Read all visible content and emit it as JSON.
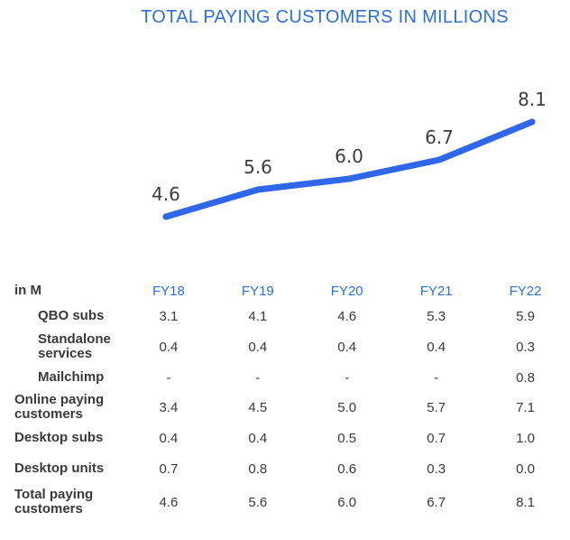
{
  "title": "TOTAL PAYING CUSTOMERS IN MILLIONS",
  "colors": {
    "line": "#2f67e8",
    "accent": "#2c6fd8"
  },
  "chart_data": {
    "type": "line",
    "title": "TOTAL PAYING CUSTOMERS IN MILLIONS",
    "x": [
      "FY18",
      "FY19",
      "FY20",
      "FY21",
      "FY22"
    ],
    "series": [
      {
        "values": [
          4.6,
          5.6,
          6.0,
          6.7,
          8.1
        ]
      }
    ],
    "data_labels": [
      "4.6",
      "5.6",
      "6.0",
      "6.7",
      "8.1"
    ],
    "grid": false
  },
  "table": {
    "unit_label": "in M",
    "columns": [
      "FY18",
      "FY19",
      "FY20",
      "FY21",
      "FY22"
    ],
    "rows": [
      {
        "label": "QBO subs",
        "values": [
          "3.1",
          "4.1",
          "4.6",
          "5.3",
          "5.9"
        ]
      },
      {
        "label": "Standalone services",
        "values": [
          "0.4",
          "0.4",
          "0.4",
          "0.4",
          "0.3"
        ]
      },
      {
        "label": "Mailchimp",
        "values": [
          "-",
          "-",
          "-",
          "-",
          "0.8"
        ]
      },
      {
        "label": "Online paying customers",
        "values": [
          "3.4",
          "4.5",
          "5.0",
          "5.7",
          "7.1"
        ]
      },
      {
        "label": "Desktop subs",
        "values": [
          "0.4",
          "0.4",
          "0.5",
          "0.7",
          "1.0"
        ]
      },
      {
        "label": "Desktop units",
        "values": [
          "0.7",
          "0.8",
          "0.6",
          "0.3",
          "0.0"
        ]
      },
      {
        "label": "Total paying customers",
        "values": [
          "4.6",
          "5.6",
          "6.0",
          "6.7",
          "8.1"
        ]
      }
    ]
  }
}
